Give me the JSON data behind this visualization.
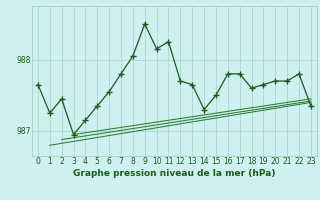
{
  "xlabel": "Graphe pression niveau de la mer (hPa)",
  "x": [
    0,
    1,
    2,
    3,
    4,
    5,
    6,
    7,
    8,
    9,
    10,
    11,
    12,
    13,
    14,
    15,
    16,
    17,
    18,
    19,
    20,
    21,
    22,
    23
  ],
  "y_main": [
    987.65,
    987.25,
    987.45,
    986.95,
    987.15,
    987.35,
    987.55,
    987.8,
    988.05,
    988.5,
    988.15,
    988.25,
    987.7,
    987.65,
    987.3,
    987.5,
    987.8,
    987.8,
    987.6,
    987.65,
    987.7,
    987.7,
    987.8,
    987.35
  ],
  "y_trend1_x": [
    1,
    23
  ],
  "y_trend1_y": [
    986.8,
    987.4
  ],
  "y_trend2_x": [
    2,
    23
  ],
  "y_trend2_y": [
    986.88,
    987.42
  ],
  "y_trend3_x": [
    3,
    23
  ],
  "y_trend3_y": [
    986.95,
    987.45
  ],
  "ylim": [
    986.65,
    988.75
  ],
  "ytick_vals": [
    987,
    988
  ],
  "ytick_labels": [
    "987",
    "988"
  ],
  "xticks": [
    0,
    1,
    2,
    3,
    4,
    5,
    6,
    7,
    8,
    9,
    10,
    11,
    12,
    13,
    14,
    15,
    16,
    17,
    18,
    19,
    20,
    21,
    22,
    23
  ],
  "bg_color": "#cff0f0",
  "grid_color": "#99ccbb",
  "line_color": "#1a5c1a",
  "trend_color": "#2d7a2d",
  "marker": "+",
  "marker_size": 4,
  "marker_lw": 1.0,
  "line_width": 0.9,
  "trend_lw": 0.75,
  "tick_fontsize": 5.5,
  "label_fontsize": 6.5
}
